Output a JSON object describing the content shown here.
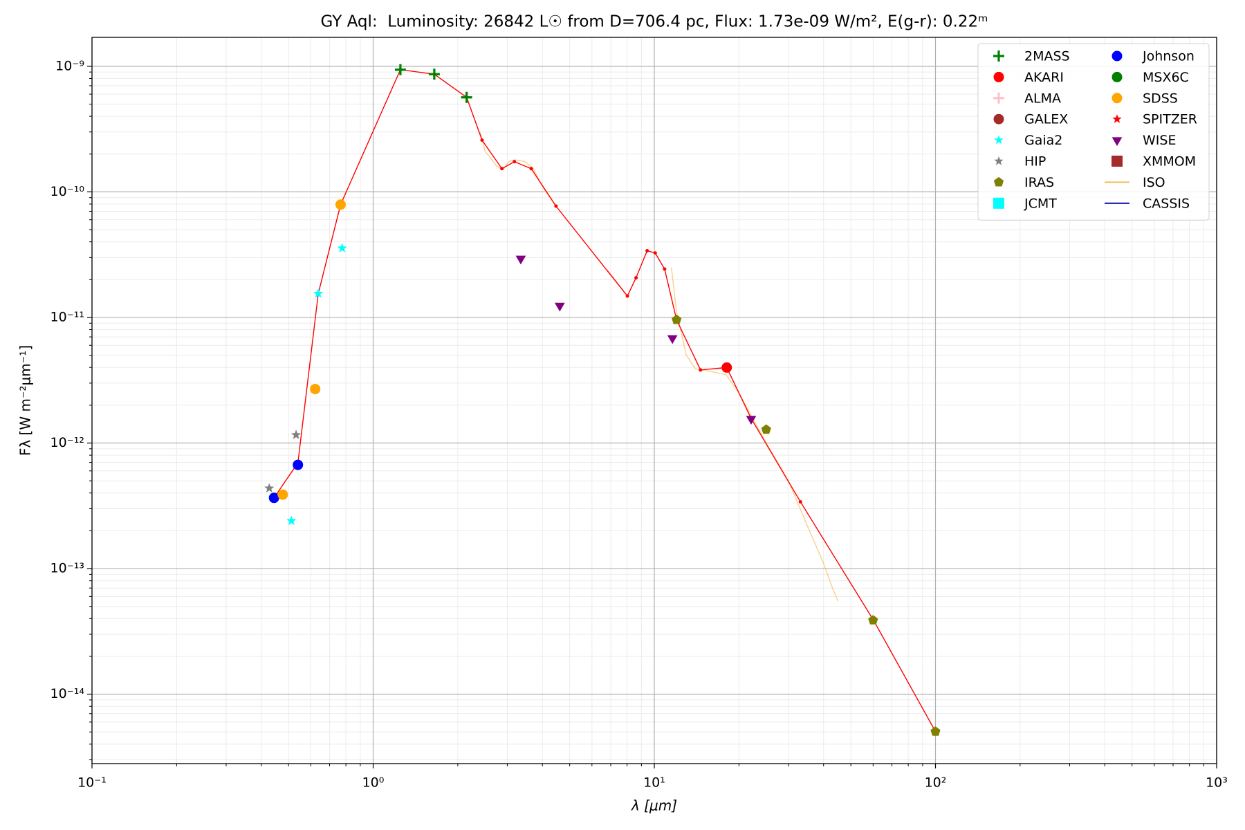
{
  "chart_data": {
    "type": "scatter",
    "title": "GY Aql:  Luminosity: 26842 L☉ from D=706.4 pc, Flux: 1.73e-09 W/m², E(g-r): 0.22ᵐ",
    "x_label": "λ [μm]",
    "y_label": "Fλ [W m⁻²μm⁻¹]",
    "x_log": true,
    "y_log": true,
    "grid": true,
    "minor_grid": true,
    "legend": "upper right",
    "xlim": [
      0.1,
      1000
    ],
    "ylim": [
      2.8e-15,
      1.7e-09
    ],
    "xticks": [
      {
        "value": 0.1,
        "label": "10⁻¹"
      },
      {
        "value": 1,
        "label": "10⁰"
      },
      {
        "value": 10,
        "label": "10¹"
      },
      {
        "value": 100,
        "label": "10²"
      },
      {
        "value": 1000,
        "label": "10³"
      }
    ],
    "yticks": [
      {
        "value": 1e-14,
        "label": "10⁻¹⁴"
      },
      {
        "value": 1e-13,
        "label": "10⁻¹³"
      },
      {
        "value": 1e-12,
        "label": "10⁻¹²"
      },
      {
        "value": 1e-11,
        "label": "10⁻¹¹"
      },
      {
        "value": 1e-10,
        "label": "10⁻¹⁰"
      },
      {
        "value": 1e-09,
        "label": "10⁻⁹"
      }
    ],
    "model": {
      "color": "#ff0000",
      "x": [
        0.444,
        0.54,
        0.638,
        0.766,
        1.25,
        1.65,
        2.15,
        2.44,
        2.87,
        3.18,
        3.65,
        4.47,
        8.02,
        8.61,
        9.43,
        10.07,
        10.88,
        12.0,
        14.6,
        18.1,
        22.1,
        33.1,
        60.2,
        100
      ],
      "values": [
        3.66e-13,
        6.95e-13,
        1.55e-11,
        7.92e-11,
        9.4e-10,
        8.65e-10,
        5.66e-10,
        2.58e-10,
        1.53e-10,
        1.74e-10,
        1.53e-10,
        7.7e-11,
        1.48e-11,
        2.07e-11,
        3.4e-11,
        3.26e-11,
        2.43e-11,
        9.57e-12,
        3.82e-12,
        3.99e-12,
        1.57e-12,
        3.4e-13,
        3.88e-14,
        5.04e-15
      ]
    },
    "series": [
      {
        "name": "2MASS",
        "marker": "plus",
        "color": "#008000",
        "x": [
          1.25,
          1.65,
          2.15
        ],
        "values": [
          9.4e-10,
          8.65e-10,
          5.66e-10
        ]
      },
      {
        "name": "AKARI",
        "marker": "circle",
        "color": "#ff0000",
        "x": [
          18.1
        ],
        "values": [
          3.99e-12
        ]
      },
      {
        "name": "ALMA",
        "marker": "plus",
        "color": "#ffc0cb",
        "x": [],
        "values": []
      },
      {
        "name": "GALEX",
        "marker": "circle",
        "color": "#a52a2a",
        "x": [],
        "values": []
      },
      {
        "name": "Gaia2",
        "marker": "star",
        "color": "#00ffff",
        "x": [
          0.512,
          0.638,
          0.776
        ],
        "values": [
          2.4e-13,
          1.55e-11,
          3.56e-11
        ]
      },
      {
        "name": "HIP",
        "marker": "star",
        "color": "#808080",
        "x": [
          0.427,
          0.532
        ],
        "values": [
          4.36e-13,
          1.16e-12
        ]
      },
      {
        "name": "IRAS",
        "marker": "pentagon",
        "color": "#808000",
        "x": [
          12,
          25,
          60,
          100
        ],
        "values": [
          9.57e-12,
          1.28e-12,
          3.88e-14,
          5.04e-15
        ]
      },
      {
        "name": "JCMT",
        "marker": "square",
        "color": "#00ffff",
        "x": [],
        "values": []
      },
      {
        "name": "Johnson",
        "marker": "circle",
        "color": "#0000ff",
        "x": [
          0.444,
          0.54
        ],
        "values": [
          3.66e-13,
          6.7e-13
        ]
      },
      {
        "name": "MSX6C",
        "marker": "circle",
        "color": "#008000",
        "x": [],
        "values": []
      },
      {
        "name": "SDSS",
        "marker": "circle",
        "color": "#ffa500",
        "x": [
          0.477,
          0.622,
          0.766
        ],
        "values": [
          3.88e-13,
          2.69e-12,
          7.92e-11
        ]
      },
      {
        "name": "SPITZER",
        "marker": "star",
        "color": "#ff0000",
        "x": [],
        "values": []
      },
      {
        "name": "WISE",
        "marker": "triangle-down",
        "color": "#800080",
        "x": [
          3.35,
          4.61,
          11.6,
          22.1
        ],
        "values": [
          2.94e-11,
          1.24e-11,
          6.84e-12,
          1.56e-12
        ]
      },
      {
        "name": "XMMOM",
        "marker": "square",
        "color": "#a52a2a",
        "x": [],
        "values": []
      },
      {
        "name": "ISO",
        "marker": "line",
        "color": "#f5b041",
        "x": [
          2.4,
          2.5,
          2.6,
          2.75,
          2.9,
          3.05,
          3.2,
          3.45,
          3.7,
          4.0,
          4.5,
          null,
          6.8,
          8.0,
          null,
          11.5,
          12.0,
          13.0,
          14.0,
          16.0,
          18.0,
          20.0,
          25.0,
          30.0,
          35.0,
          40.0,
          43.0,
          45.0
        ],
        "values": [
          3e-10,
          2.1e-10,
          1.9e-10,
          1.6e-10,
          1.5e-10,
          1.75e-10,
          1.8e-10,
          1.75e-10,
          1.55e-10,
          1.1e-10,
          7.5e-11,
          null,
          2.4e-11,
          1.5e-11,
          null,
          2.5e-11,
          1.1e-11,
          5e-12,
          3.9e-12,
          3.7e-12,
          3.5e-12,
          2.5e-12,
          1e-12,
          5e-13,
          2.2e-13,
          1.1e-13,
          7e-14,
          5.5e-14
        ]
      },
      {
        "name": "CASSIS",
        "marker": "line",
        "color": "#0000aa",
        "x": [],
        "values": []
      }
    ]
  }
}
